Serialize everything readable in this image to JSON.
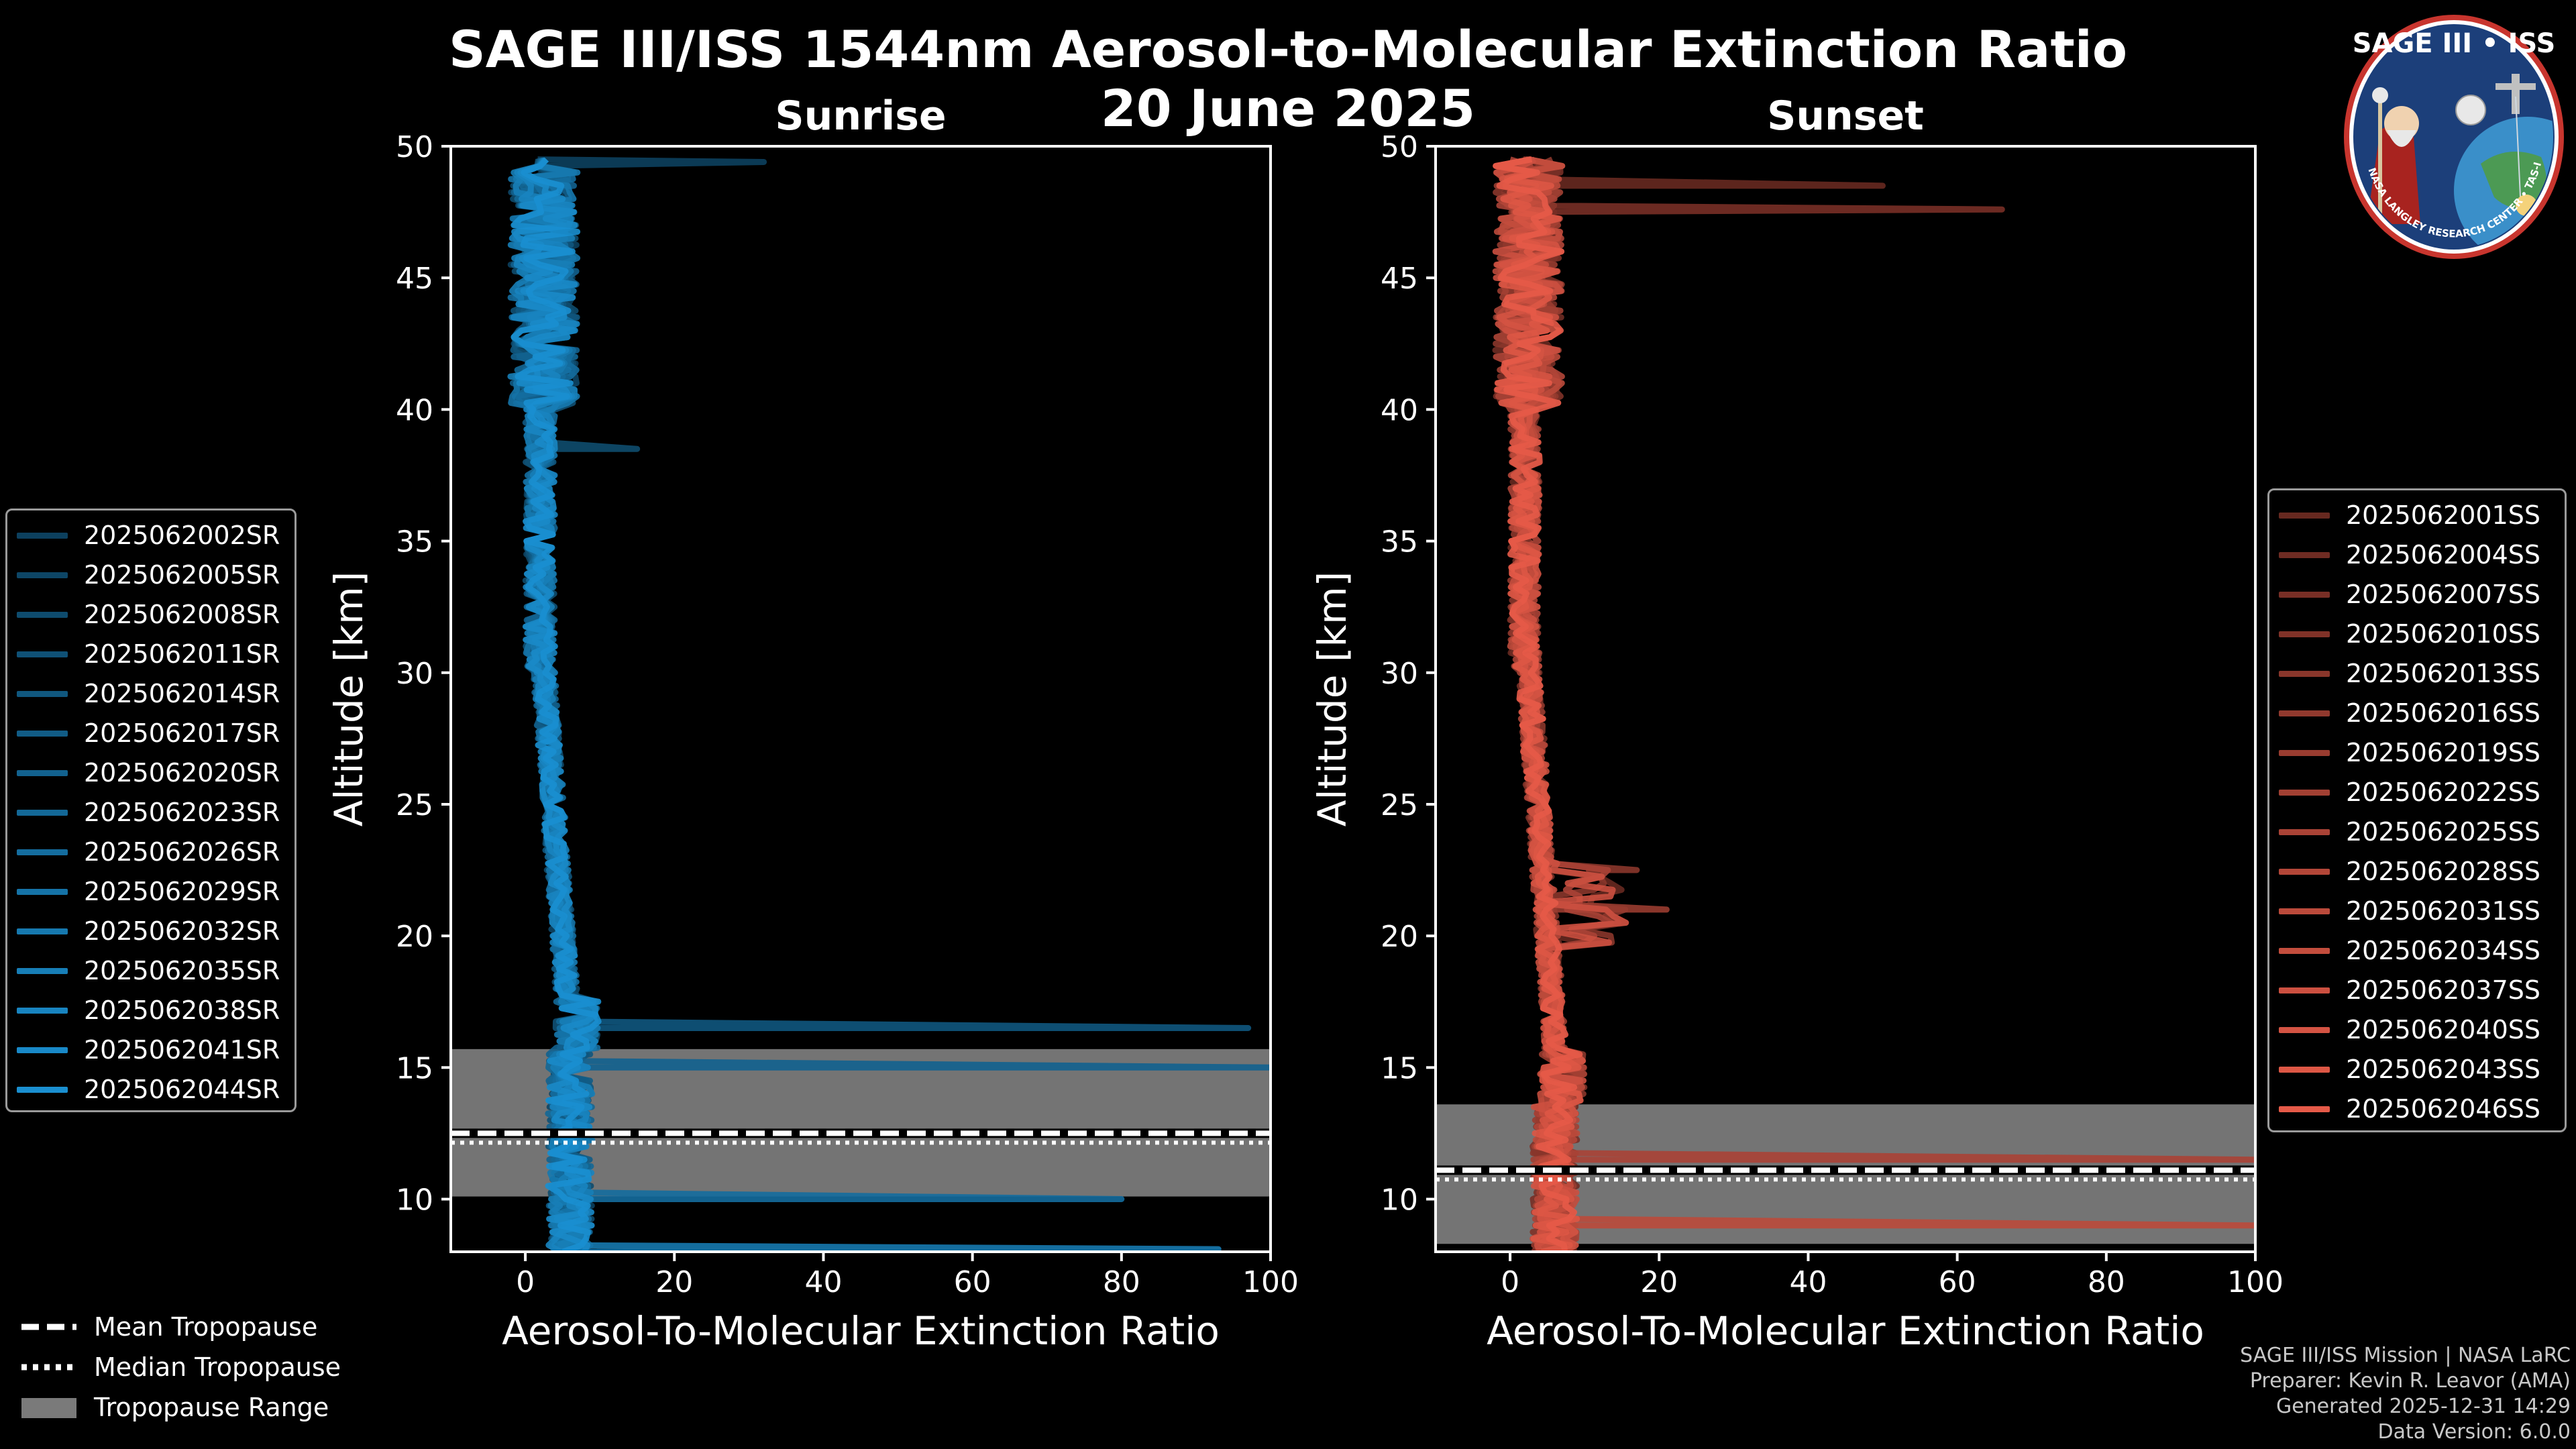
{
  "title_line1": "SAGE III/ISS 1544nm Aerosol-to-Molecular Extinction Ratio",
  "title_line2": "20 June 2025",
  "logo": {
    "top_text": "SAGE III • ISS",
    "ring_text": "BALL • NASA LANGLEY RESEARCH CENTER • TAS-I • ESA"
  },
  "footer": {
    "line1": "SAGE III/ISS Mission | NASA LaRC",
    "line2": "Preparer: Kevin R. Leavor (AMA)",
    "line3": "Generated 2025-12-31 14:29",
    "line4": "Data Version: 6.0.0"
  },
  "bottom_legend": {
    "mean": "Mean Tropopause",
    "median": "Median Tropopause",
    "range": "Tropopause Range"
  },
  "colors": {
    "sunrise": "#1a8fd0",
    "sunset": "#e55a48",
    "tropo_range": "#7a7a7a"
  },
  "chart_data": [
    {
      "type": "line",
      "panel": "sunrise",
      "title": "Sunrise",
      "xlabel": "Aerosol-To-Molecular Extinction Ratio",
      "ylabel": "Altitude [km]",
      "xlim": [
        -10,
        100
      ],
      "ylim": [
        8,
        50
      ],
      "xticks": [
        0,
        20,
        40,
        60,
        80,
        100
      ],
      "yticks": [
        10,
        15,
        20,
        25,
        30,
        35,
        40,
        45,
        50
      ],
      "tropopause": {
        "mean": 12.5,
        "median": 12.4,
        "range": [
          10.1,
          15.7
        ]
      },
      "series": [
        "2025062002SR",
        "2025062005SR",
        "2025062008SR",
        "2025062011SR",
        "2025062014SR",
        "2025062017SR",
        "2025062020SR",
        "2025062023SR",
        "2025062026SR",
        "2025062029SR",
        "2025062032SR",
        "2025062035SR",
        "2025062038SR",
        "2025062041SR",
        "2025062044SR"
      ],
      "features": [
        {
          "name": "upper_spike",
          "altitude": 49.4,
          "value": 32
        },
        {
          "name": "upper_spike",
          "altitude": 38.5,
          "value": 15
        },
        {
          "name": "lower_spike",
          "altitude": 16.5,
          "value": 97
        },
        {
          "name": "lower_spike",
          "altitude": 15.0,
          "value": 100
        },
        {
          "name": "lower_spike",
          "altitude": 10.0,
          "value": 80
        },
        {
          "name": "lower_spike",
          "altitude": 8.1,
          "value": 93
        }
      ]
    },
    {
      "type": "line",
      "panel": "sunset",
      "title": "Sunset",
      "xlabel": "Aerosol-To-Molecular Extinction Ratio",
      "ylabel": "Altitude [km]",
      "xlim": [
        -10,
        100
      ],
      "ylim": [
        8,
        50
      ],
      "xticks": [
        0,
        20,
        40,
        60,
        80,
        100
      ],
      "yticks": [
        10,
        15,
        20,
        25,
        30,
        35,
        40,
        45,
        50
      ],
      "tropopause": {
        "mean": 11.1,
        "median": 11.0,
        "range": [
          8.3,
          13.6
        ]
      },
      "series": [
        "2025062001SS",
        "2025062004SS",
        "2025062007SS",
        "2025062010SS",
        "2025062013SS",
        "2025062016SS",
        "2025062019SS",
        "2025062022SS",
        "2025062025SS",
        "2025062028SS",
        "2025062031SS",
        "2025062034SS",
        "2025062037SS",
        "2025062040SS",
        "2025062043SS",
        "2025062046SS"
      ],
      "features": [
        {
          "name": "upper_spike",
          "altitude": 48.5,
          "value": 50
        },
        {
          "name": "upper_spike",
          "altitude": 47.6,
          "value": 66
        },
        {
          "name": "mid_bump",
          "altitude": 22.5,
          "value": 17
        },
        {
          "name": "mid_bump",
          "altitude": 21.0,
          "value": 21
        },
        {
          "name": "lower_spike",
          "altitude": 11.5,
          "value": 100
        },
        {
          "name": "lower_spike",
          "altitude": 9.0,
          "value": 100
        }
      ]
    }
  ]
}
